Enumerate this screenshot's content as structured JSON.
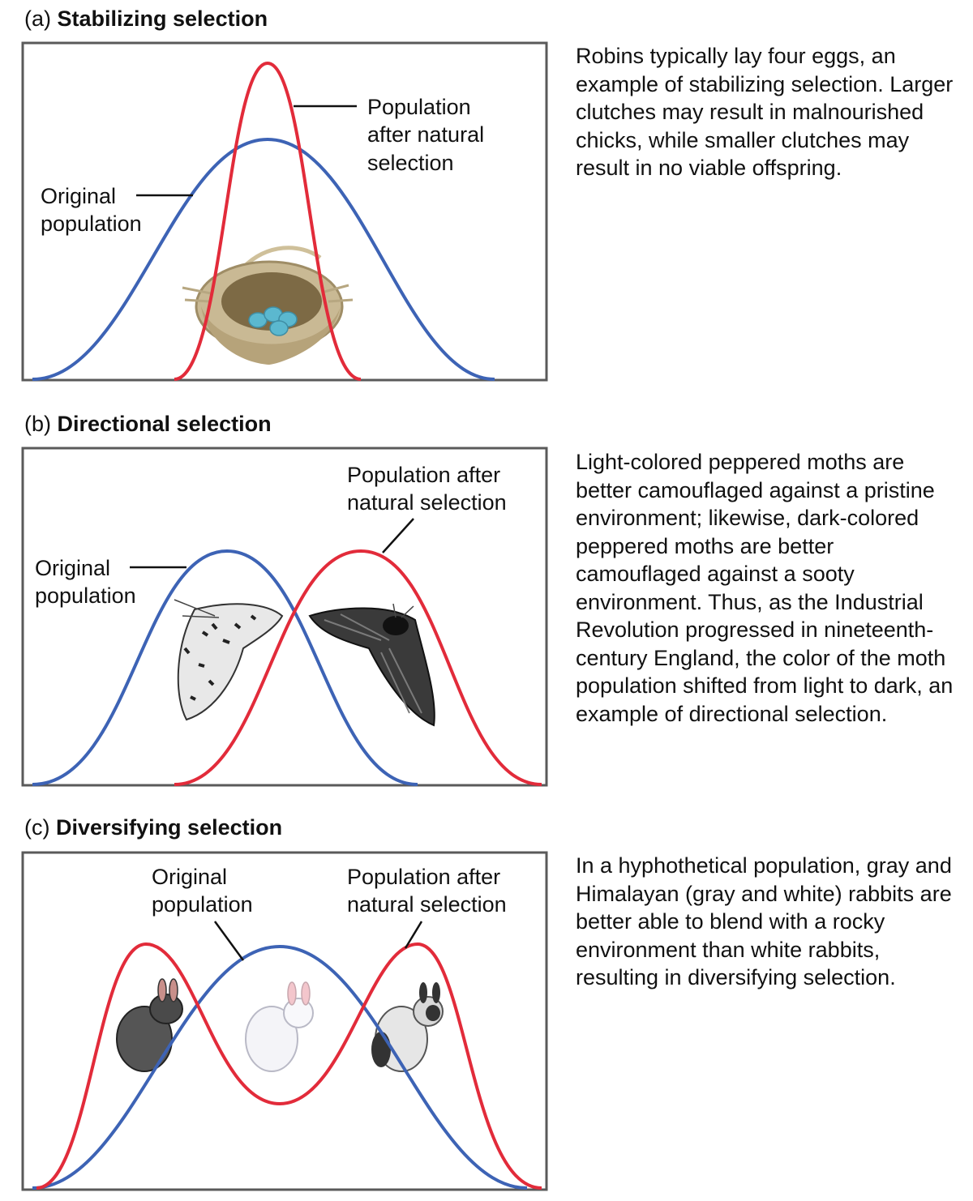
{
  "colors": {
    "original": "#3d63b5",
    "selected": "#e22b3a",
    "frame": "#5a5a5a",
    "leader": "#111111"
  },
  "panels": [
    {
      "tag": "(a)",
      "title": "Stabilizing selection",
      "labels": {
        "original": [
          "Original",
          "population"
        ],
        "after": [
          "Population",
          "after natural",
          "selection"
        ]
      },
      "illustration": "nest-with-four-eggs",
      "description": "Robins typically lay four eggs, an example of stabilizing selection. Larger clutches may result in malnourished chicks, while smaller clutches may result in no viable offspring."
    },
    {
      "tag": "(b)",
      "title": "Directional selection",
      "labels": {
        "original": [
          "Original",
          "population"
        ],
        "after": [
          "Population after",
          "natural selection"
        ]
      },
      "illustration": "light-moth and dark-moth",
      "description": "Light-colored peppered moths are better camouflaged against a pristine environment; likewise, dark-colored peppered moths are better camouflaged against a sooty environment. Thus, as the Industrial Revolution progressed in nineteenth-century England, the color of the moth population shifted from light to dark, an example of directional selection."
    },
    {
      "tag": "(c)",
      "title": "Diversifying selection",
      "labels": {
        "original": [
          "Original",
          "population"
        ],
        "after": [
          "Population after",
          "natural selection"
        ]
      },
      "illustration": "gray-rabbit, white-rabbit, himalayan-rabbit",
      "description": "In a hyphothetical population, gray and Himalayan (gray and white) rabbits are better able to blend with a rocky environment than white rabbits, resulting in diversifying selection."
    }
  ]
}
